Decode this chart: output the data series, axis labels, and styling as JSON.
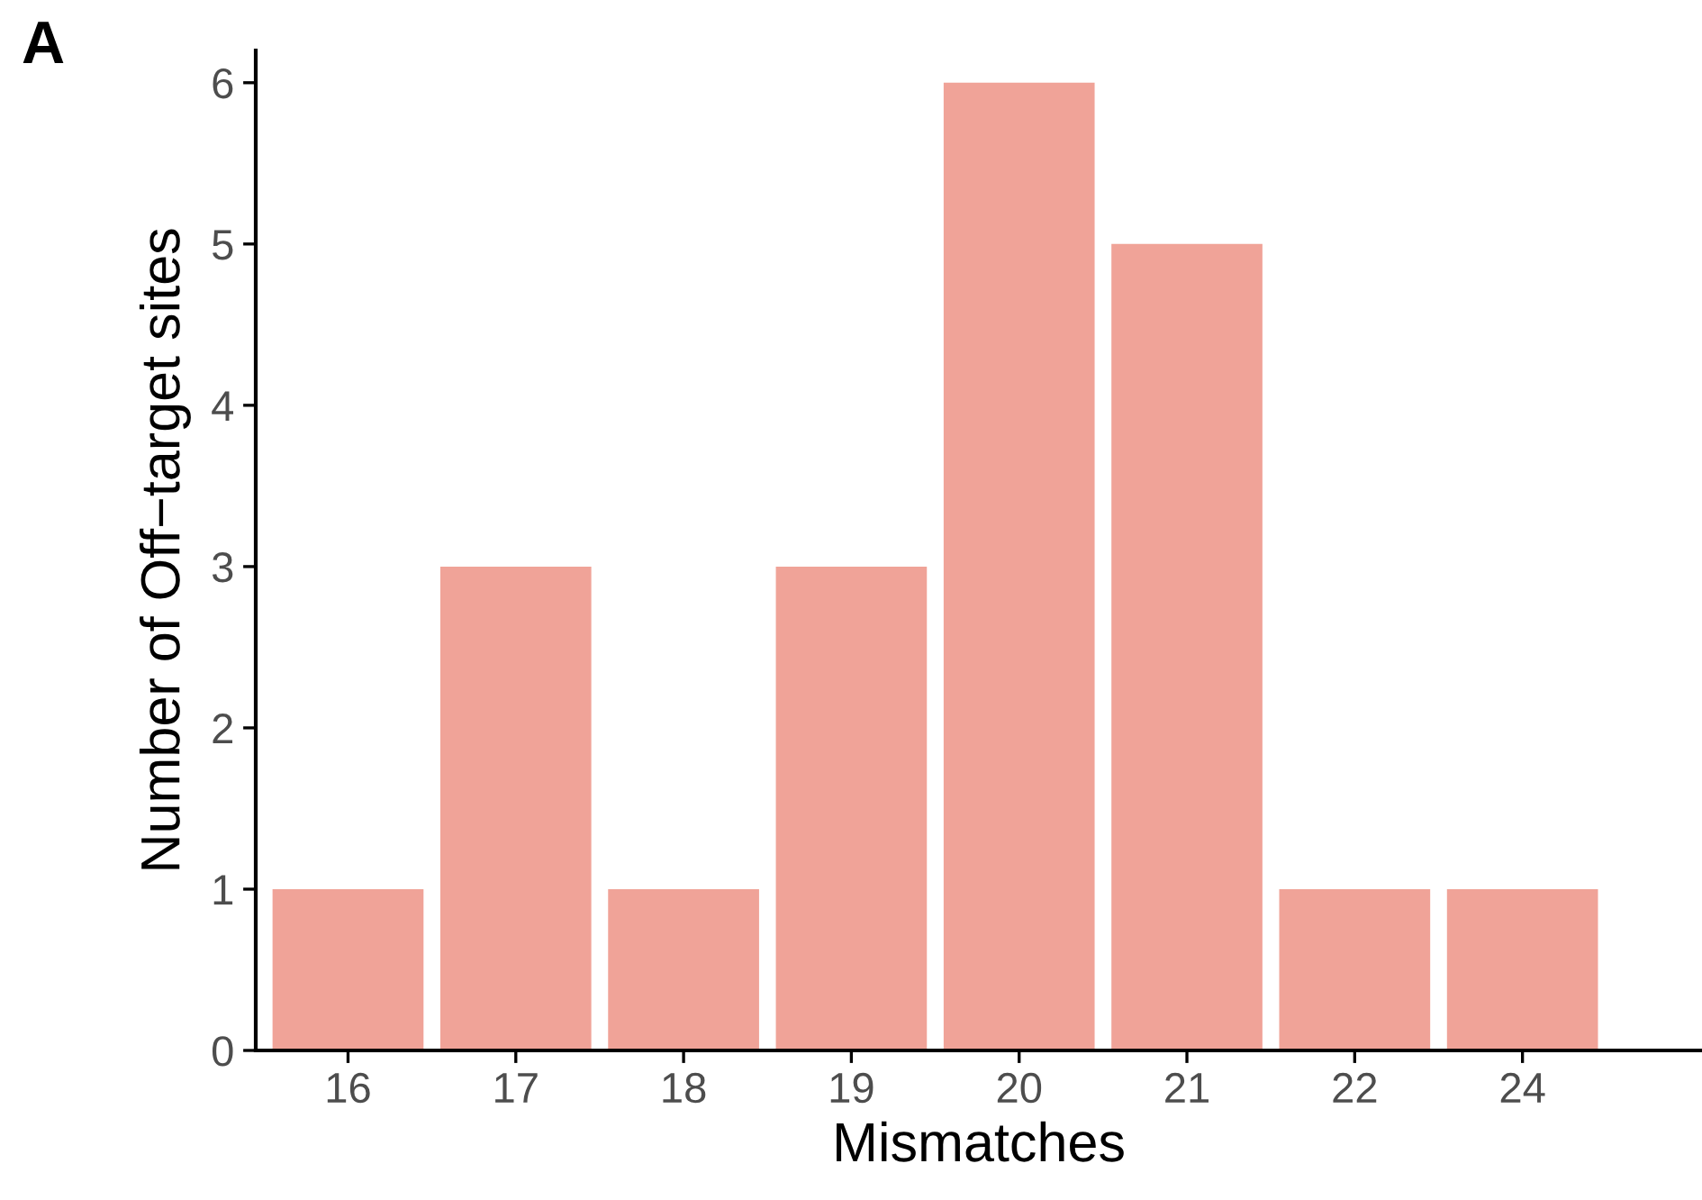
{
  "chart_data": {
    "type": "bar",
    "xlabel": "Mismatches",
    "ylabel": "Number of Off−target sites",
    "categories": [
      "16",
      "17",
      "18",
      "19",
      "20",
      "21",
      "22",
      "24"
    ],
    "values": [
      1,
      3,
      1,
      3,
      6,
      5,
      1,
      1
    ],
    "color": "#f0a398",
    "ylim": [
      0,
      6.2
    ],
    "yticks": [
      0,
      1,
      2,
      3,
      4,
      5,
      6
    ],
    "grid": false,
    "annotations": [
      "A"
    ]
  }
}
